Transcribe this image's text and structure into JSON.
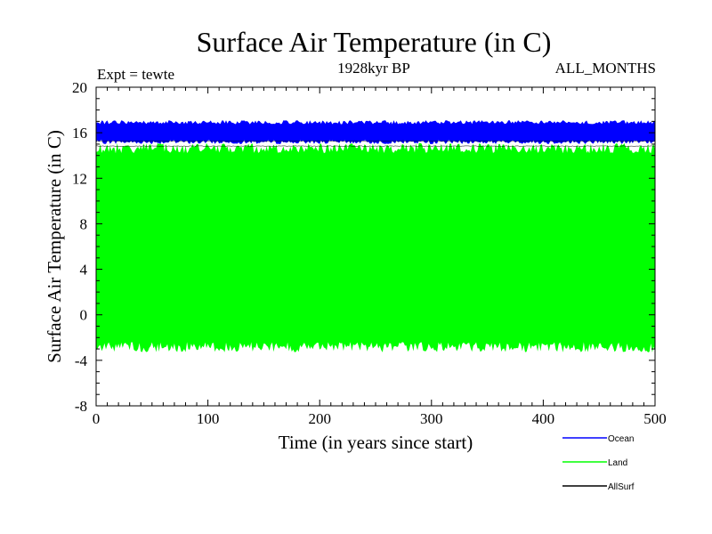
{
  "chart_data": {
    "type": "line",
    "title": "Surface Air Temperature (in C)",
    "subtitle": "1928kyr BP",
    "experiment_label": "Expt = tewte",
    "months_label": "ALL_MONTHS",
    "xlabel": "Time (in years since start)",
    "ylabel": "Surface Air Temperature (in C)",
    "xlim": [
      0,
      500
    ],
    "ylim": [
      -8,
      20
    ],
    "x_ticks": [
      0,
      100,
      200,
      300,
      400,
      500
    ],
    "x_tick_labels": [
      "0",
      "100",
      "200",
      "300",
      "400",
      "500"
    ],
    "y_ticks": [
      -8,
      -4,
      0,
      4,
      8,
      12,
      16,
      20
    ],
    "y_tick_labels": [
      "-8",
      "-4",
      "0",
      "4",
      "8",
      "12",
      "16",
      "20"
    ],
    "grid": false,
    "legend_position": "bottom-right",
    "series": [
      {
        "name": "Ocean",
        "color": "#0000ff",
        "min_approx": 15.0,
        "max_approx": 17.1,
        "trend": "roughly flat"
      },
      {
        "name": "Land",
        "color": "#00ff00",
        "min_approx": -3.3,
        "max_approx": 15.1,
        "trend": "roughly flat"
      },
      {
        "name": "AllSurf",
        "color": "#000000",
        "min_approx": 14.8,
        "max_approx": 15.3,
        "trend": "roughly flat"
      }
    ]
  }
}
